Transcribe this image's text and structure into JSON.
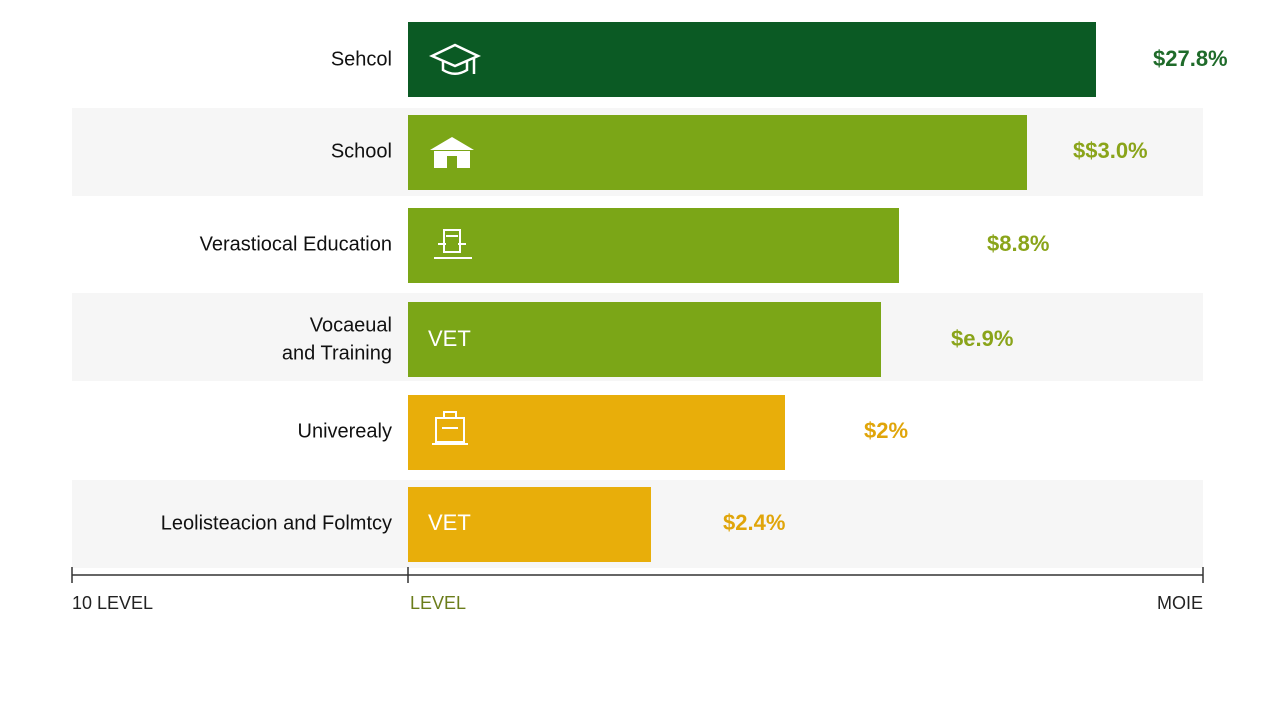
{
  "rows": [
    {
      "label_lines": [
        "Sehcol"
      ],
      "inner": null,
      "value": "$27.8%"
    },
    {
      "label_lines": [
        "School"
      ],
      "inner": null,
      "value": "$$3.0%"
    },
    {
      "label_lines": [
        "Verastiocal Education"
      ],
      "inner": null,
      "value": "$8.8%"
    },
    {
      "label_lines": [
        "Vocaeual",
        "and Training"
      ],
      "inner": "VET",
      "value": "$e.9%"
    },
    {
      "label_lines": [
        "Univerealy"
      ],
      "inner": null,
      "value": "$2%"
    },
    {
      "label_lines": [
        "Leolisteacion and Folmtcy"
      ],
      "inner": "VET",
      "value": "$2.4%"
    }
  ],
  "axis": {
    "left": "10 LEVEL",
    "middle": "LEVEL",
    "right": "MOIE"
  }
}
